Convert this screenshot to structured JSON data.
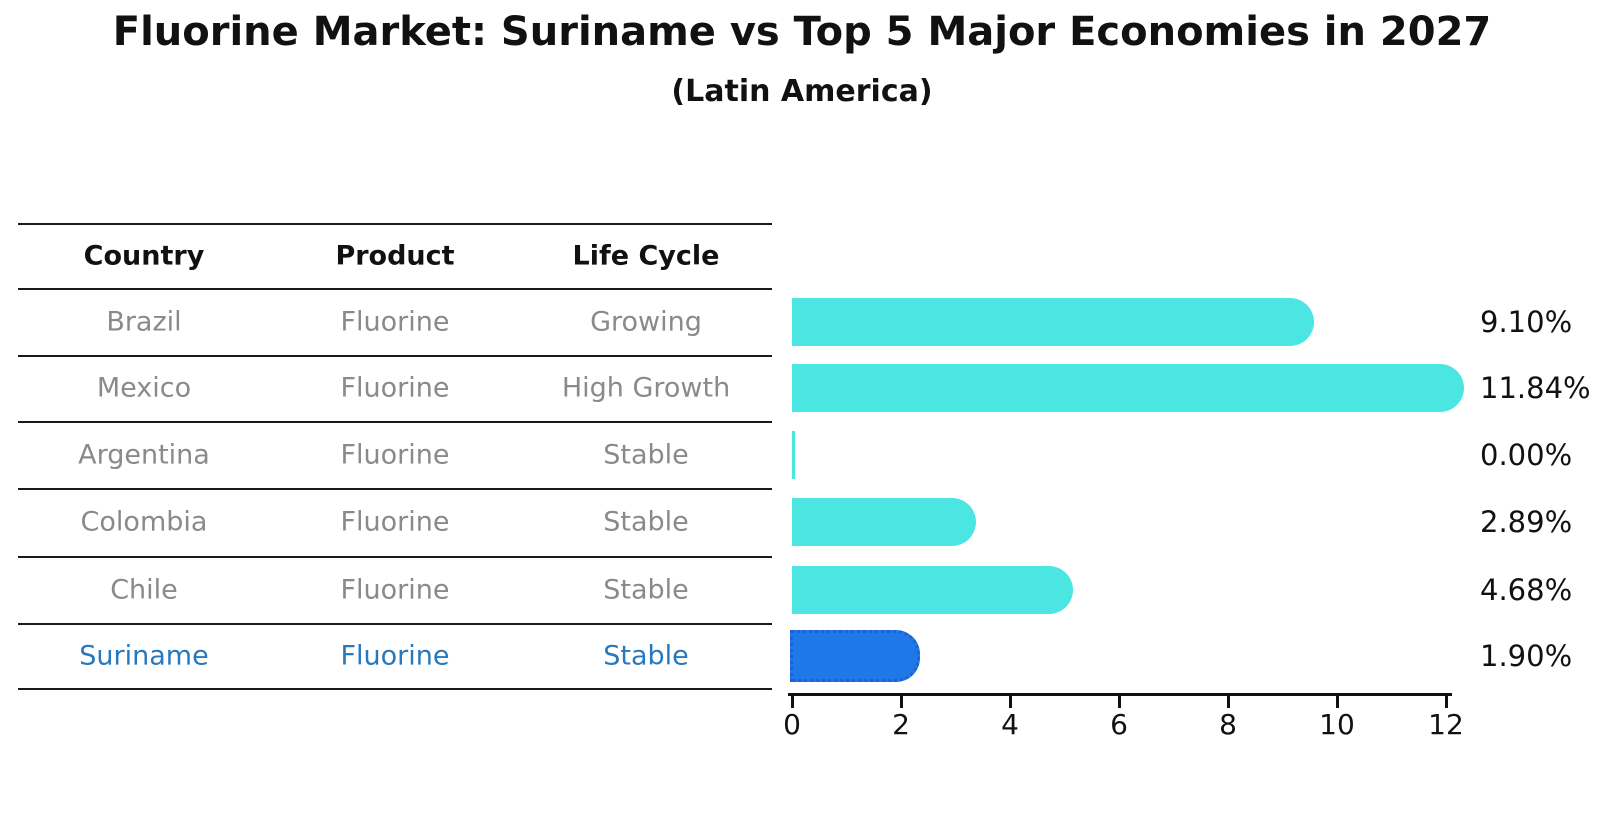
{
  "title": "Fluorine Market: Suriname vs Top 5 Major Economies in 2027",
  "subtitle": "(Latin America)",
  "table": {
    "headers": [
      "Country",
      "Product",
      "Life Cycle"
    ],
    "rows": [
      {
        "country": "Brazil",
        "product": "Fluorine",
        "life_cycle": "Growing"
      },
      {
        "country": "Mexico",
        "product": "Fluorine",
        "life_cycle": "High Growth"
      },
      {
        "country": "Argentina",
        "product": "Fluorine",
        "life_cycle": "Stable"
      },
      {
        "country": "Colombia",
        "product": "Fluorine",
        "life_cycle": "Stable"
      },
      {
        "country": "Chile",
        "product": "Fluorine",
        "life_cycle": "Stable"
      },
      {
        "country": "Suriname",
        "product": "Fluorine",
        "life_cycle": "Stable"
      }
    ]
  },
  "chart_data": {
    "type": "bar",
    "orientation": "horizontal",
    "categories": [
      "Brazil",
      "Mexico",
      "Argentina",
      "Colombia",
      "Chile",
      "Suriname"
    ],
    "values": [
      9.1,
      11.84,
      0.0,
      2.89,
      4.68,
      1.9
    ],
    "value_labels": [
      "9.10%",
      "11.84%",
      "0.00%",
      "2.89%",
      "4.68%",
      "1.90%"
    ],
    "x_ticks": [
      0,
      2,
      4,
      6,
      8,
      10,
      12
    ],
    "xlim": [
      0,
      12
    ],
    "grid": "off",
    "legend": "none",
    "highlight_category": "Suriname",
    "bar_color": "#4be5e2",
    "highlight_bar_color": "#2078e8",
    "highlight_text_color": "#2878be",
    "value_label_color": "#111111"
  }
}
